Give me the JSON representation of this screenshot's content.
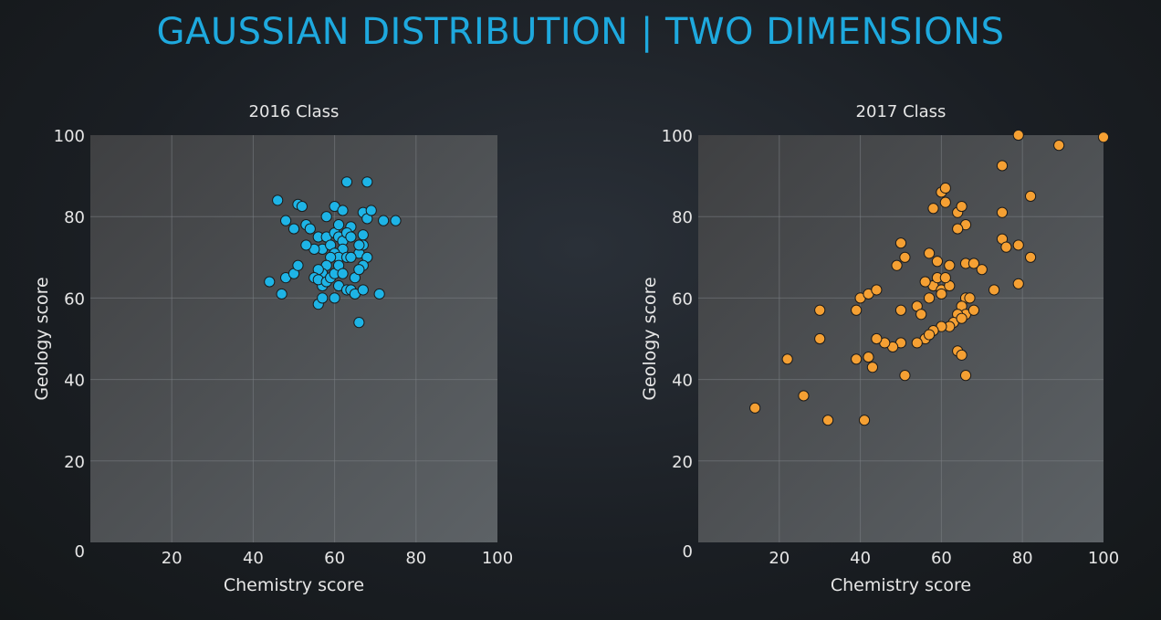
{
  "page": {
    "title": "GAUSSIAN DISTRIBUTION | TWO DIMENSIONS"
  },
  "chart_data": [
    {
      "type": "scatter",
      "title": "2016 Class",
      "xlabel": "Chemistry score",
      "ylabel": "Geology score",
      "xlim": [
        0,
        100
      ],
      "ylim": [
        0,
        100
      ],
      "xticks": [
        20,
        40,
        60,
        80,
        100
      ],
      "yticks": [
        20,
        40,
        60,
        80,
        100
      ],
      "origin_label": "0",
      "grid": true,
      "marker_color": "#1eb4e6",
      "label_color": "#e6e6e6",
      "points": [
        [
          46,
          84
        ],
        [
          51,
          83
        ],
        [
          52,
          82.5
        ],
        [
          48,
          79
        ],
        [
          50,
          77
        ],
        [
          53,
          78
        ],
        [
          54,
          77
        ],
        [
          58,
          80
        ],
        [
          60,
          82.5
        ],
        [
          62,
          81.5
        ],
        [
          64,
          77.5
        ],
        [
          63,
          88.5
        ],
        [
          68,
          88.5
        ],
        [
          67,
          81
        ],
        [
          68,
          79.5
        ],
        [
          69,
          81.5
        ],
        [
          72,
          79
        ],
        [
          75,
          79
        ],
        [
          67,
          75.5
        ],
        [
          66,
          71
        ],
        [
          67,
          73
        ],
        [
          68,
          70
        ],
        [
          56,
          75
        ],
        [
          58,
          75
        ],
        [
          57,
          72
        ],
        [
          59,
          73
        ],
        [
          60,
          76
        ],
        [
          61,
          75
        ],
        [
          62,
          74
        ],
        [
          63,
          76
        ],
        [
          64,
          75
        ],
        [
          62,
          72
        ],
        [
          60,
          71
        ],
        [
          61,
          70
        ],
        [
          59,
          70
        ],
        [
          58,
          68
        ],
        [
          57,
          66
        ],
        [
          56,
          67
        ],
        [
          55,
          65
        ],
        [
          57,
          63
        ],
        [
          56,
          64.5
        ],
        [
          58,
          64
        ],
        [
          59,
          65
        ],
        [
          60,
          66
        ],
        [
          61,
          68
        ],
        [
          62,
          66
        ],
        [
          63,
          70
        ],
        [
          60,
          60
        ],
        [
          61,
          63
        ],
        [
          63,
          62
        ],
        [
          64,
          62
        ],
        [
          65,
          61
        ],
        [
          67,
          62
        ],
        [
          71,
          61
        ],
        [
          67,
          68
        ],
        [
          65,
          65
        ],
        [
          66,
          67
        ],
        [
          44,
          64
        ],
        [
          48,
          65
        ],
        [
          50,
          66
        ],
        [
          51,
          68
        ],
        [
          47,
          61
        ],
        [
          56,
          58.5
        ],
        [
          57,
          60
        ],
        [
          66,
          54
        ],
        [
          55,
          72
        ],
        [
          53,
          73
        ],
        [
          64,
          70
        ],
        [
          66,
          73
        ],
        [
          61,
          78
        ]
      ]
    },
    {
      "type": "scatter",
      "title": "2017 Class",
      "xlabel": "Chemistry score",
      "ylabel": "Geology score",
      "xlim": [
        0,
        100
      ],
      "ylim": [
        0,
        100
      ],
      "xticks": [
        20,
        40,
        60,
        80,
        100
      ],
      "yticks": [
        20,
        40,
        60,
        80,
        100
      ],
      "origin_label": "0",
      "grid": true,
      "marker_color": "#f5a033",
      "label_color": "#e6e6e6",
      "points": [
        [
          79,
          100
        ],
        [
          89,
          97.5
        ],
        [
          100,
          99.5
        ],
        [
          75,
          92.5
        ],
        [
          82,
          85
        ],
        [
          60,
          86
        ],
        [
          61,
          87
        ],
        [
          64,
          81
        ],
        [
          65,
          82.5
        ],
        [
          61,
          83.5
        ],
        [
          58,
          82
        ],
        [
          66,
          78
        ],
        [
          75,
          81
        ],
        [
          64,
          77
        ],
        [
          57,
          71
        ],
        [
          59,
          69
        ],
        [
          62,
          68
        ],
        [
          66,
          68.5
        ],
        [
          68,
          68.5
        ],
        [
          70,
          67
        ],
        [
          75,
          74.5
        ],
        [
          76,
          72.5
        ],
        [
          79,
          73
        ],
        [
          82,
          70
        ],
        [
          50,
          73.5
        ],
        [
          51,
          70
        ],
        [
          49,
          68
        ],
        [
          58,
          63
        ],
        [
          60,
          62
        ],
        [
          62,
          63
        ],
        [
          59,
          65
        ],
        [
          61,
          65
        ],
        [
          57,
          60
        ],
        [
          56,
          64
        ],
        [
          60,
          61
        ],
        [
          66,
          60
        ],
        [
          67,
          60
        ],
        [
          65,
          58
        ],
        [
          66,
          56
        ],
        [
          64,
          56
        ],
        [
          63,
          54
        ],
        [
          62,
          53
        ],
        [
          60,
          53
        ],
        [
          58,
          52
        ],
        [
          56,
          50
        ],
        [
          54,
          49
        ],
        [
          50,
          49
        ],
        [
          48,
          48
        ],
        [
          46,
          49
        ],
        [
          44,
          50
        ],
        [
          40,
          60
        ],
        [
          42,
          61
        ],
        [
          44,
          62
        ],
        [
          39,
          57
        ],
        [
          30,
          57
        ],
        [
          30,
          50
        ],
        [
          22,
          45
        ],
        [
          26,
          36
        ],
        [
          14,
          33
        ],
        [
          32,
          30
        ],
        [
          41,
          30
        ],
        [
          39,
          45
        ],
        [
          42,
          45.5
        ],
        [
          43,
          43
        ],
        [
          51,
          41
        ],
        [
          50,
          57
        ],
        [
          54,
          58
        ],
        [
          55,
          56
        ],
        [
          64,
          47
        ],
        [
          65,
          46
        ],
        [
          66,
          41
        ],
        [
          73,
          62
        ],
        [
          79,
          63.5
        ],
        [
          68,
          57
        ],
        [
          65,
          55
        ],
        [
          57,
          51
        ]
      ]
    }
  ]
}
